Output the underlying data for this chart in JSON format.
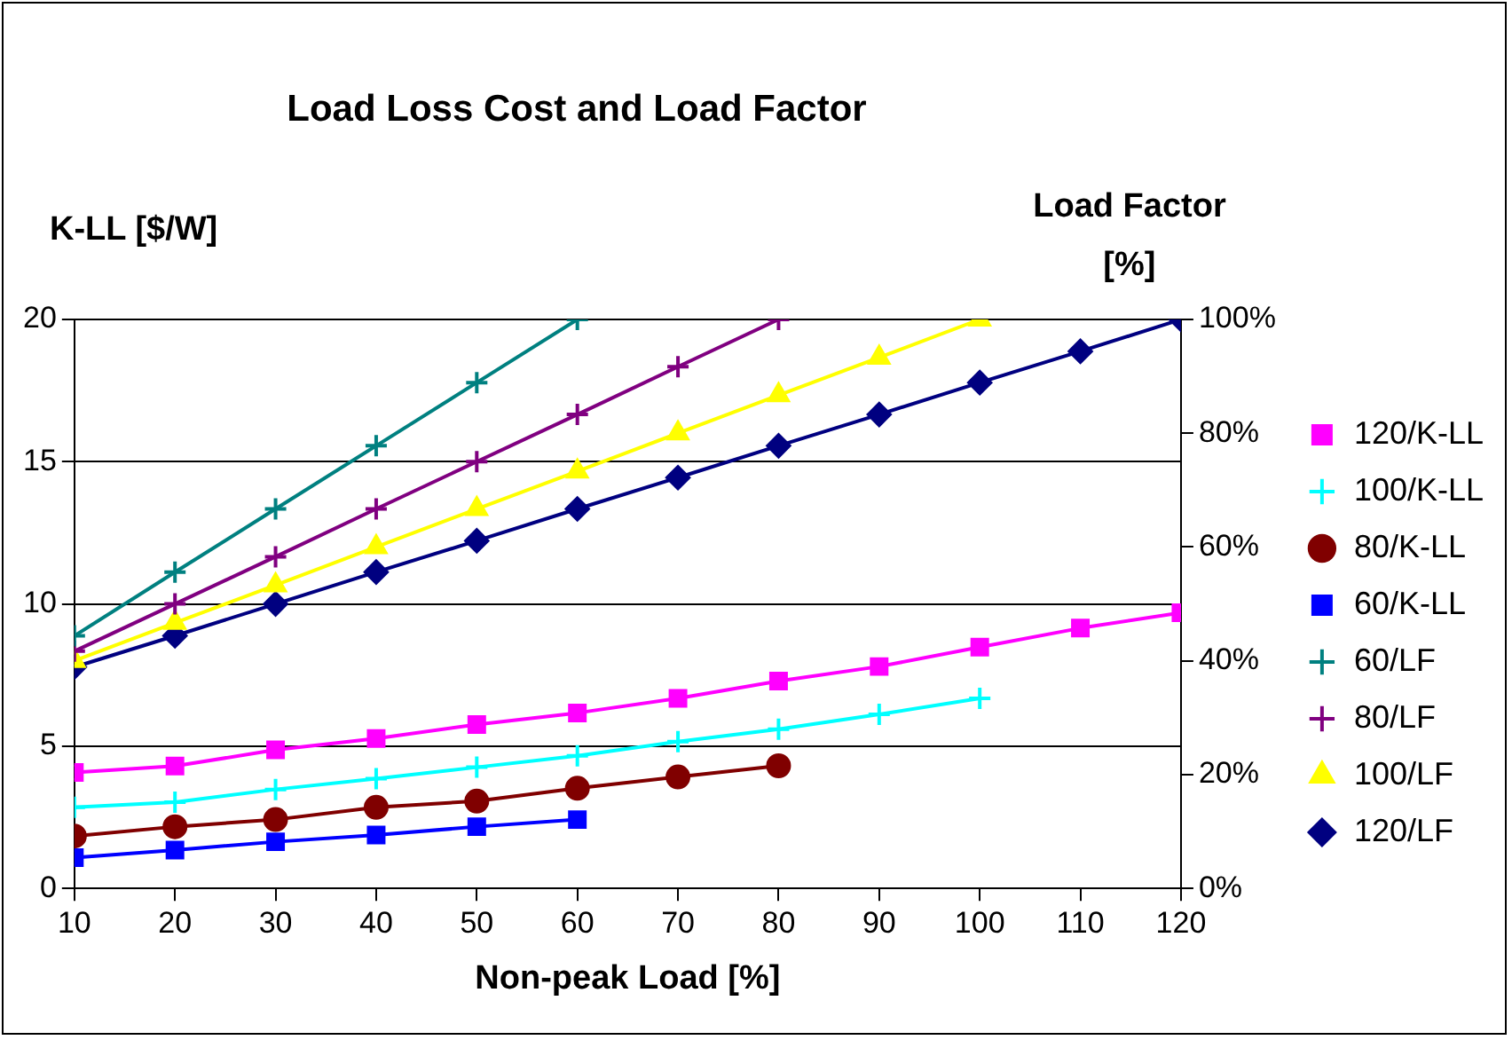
{
  "chart_data": {
    "type": "line",
    "title": "Load Loss Cost and Load Factor",
    "xlabel": "Non-peak Load [%]",
    "ylabel": "K-LL [$/W]",
    "y2label": "Load Factor [%]",
    "x": [
      10,
      20,
      30,
      40,
      50,
      60,
      70,
      80,
      90,
      100,
      110,
      120
    ],
    "xlim": [
      10,
      120
    ],
    "xticks": [
      10,
      20,
      30,
      40,
      50,
      60,
      70,
      80,
      90,
      100,
      110,
      120
    ],
    "ylim": [
      0,
      20
    ],
    "yticks": [
      0,
      5,
      10,
      15,
      20
    ],
    "y2lim": [
      0,
      100
    ],
    "y2ticks": [
      {
        "value": 0,
        "label": "0%"
      },
      {
        "value": 20,
        "label": "20%"
      },
      {
        "value": 40,
        "label": "40%"
      },
      {
        "value": 60,
        "label": "60%"
      },
      {
        "value": 80,
        "label": "80%"
      },
      {
        "value": 100,
        "label": "100%"
      }
    ],
    "grid": "y",
    "legend": "right",
    "series": [
      {
        "name": "120/K-LL",
        "color": "#ff00ff",
        "marker": "square",
        "values": [
          4.08,
          4.3,
          4.87,
          5.27,
          5.76,
          6.17,
          6.68,
          7.29,
          7.8,
          8.48,
          9.15,
          9.69
        ]
      },
      {
        "name": "100/K-LL",
        "color": "#00ffff",
        "marker": "cross",
        "values": [
          2.85,
          3.03,
          3.48,
          3.86,
          4.26,
          4.66,
          5.16,
          5.6,
          6.12,
          6.68,
          null,
          null
        ]
      },
      {
        "name": "80/K-LL",
        "color": "#800000",
        "marker": "circle",
        "values": [
          1.84,
          2.17,
          2.42,
          2.85,
          3.07,
          3.52,
          3.92,
          4.31,
          null,
          null,
          null,
          null
        ]
      },
      {
        "name": "60/K-LL",
        "color": "#0000ff",
        "marker": "square",
        "values": [
          1.08,
          1.35,
          1.64,
          1.88,
          2.17,
          2.42,
          null,
          null,
          null,
          null,
          null,
          null
        ]
      },
      {
        "name": "60/LF",
        "color": "#008080",
        "marker": "cross",
        "axis": "y2",
        "values": [
          44.4,
          55.6,
          66.7,
          77.8,
          88.9,
          100,
          null,
          null,
          null,
          null,
          null,
          null
        ]
      },
      {
        "name": "80/LF",
        "color": "#800080",
        "marker": "cross",
        "axis": "y2",
        "values": [
          41.7,
          50,
          58.3,
          66.7,
          75,
          83.3,
          91.7,
          100,
          null,
          null,
          null,
          null
        ]
      },
      {
        "name": "100/LF",
        "color": "#ffff00",
        "marker": "triangle",
        "axis": "y2",
        "values": [
          40,
          46.7,
          53.3,
          60,
          66.7,
          73.3,
          80,
          86.7,
          93.3,
          100,
          null,
          null
        ]
      },
      {
        "name": "120/LF",
        "color": "#000080",
        "marker": "diamond",
        "axis": "y2",
        "values": [
          38.9,
          44.4,
          50,
          55.6,
          61.1,
          66.7,
          72.2,
          77.8,
          83.3,
          88.9,
          94.4,
          100
        ]
      }
    ]
  }
}
